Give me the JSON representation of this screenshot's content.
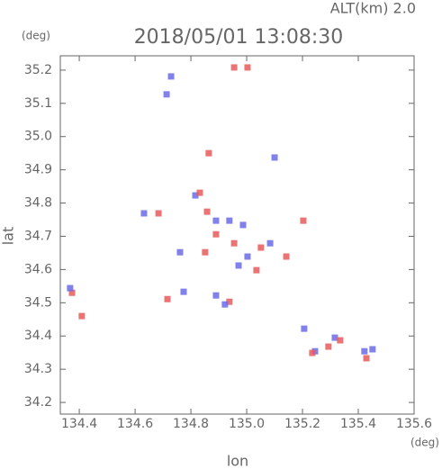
{
  "chart_data": {
    "type": "scatter",
    "title": "2018/05/01 13:08:30",
    "subtitle": "ALT(km)  2.0",
    "y_unit": "(deg)",
    "x_unit": "(deg)",
    "x_label": "lon",
    "y_label": "lat",
    "xlim": [
      134.332,
      135.6
    ],
    "ylim": [
      34.165,
      35.243
    ],
    "xticks": [
      134.4,
      134.6,
      134.8,
      {
        "value": 135,
        "label": "135.0"
      },
      135.2,
      135.4,
      135.6
    ],
    "yticks": [
      34.2,
      34.3,
      34.4,
      34.5,
      34.6,
      34.7,
      34.8,
      34.9,
      {
        "value": 35,
        "label": "35.0"
      },
      35.1,
      35.2
    ],
    "x": [
      134.374,
      134.367,
      134.409,
      134.716,
      134.774,
      134.684,
      134.632,
      134.816,
      134.832,
      134.858,
      134.89,
      134.938,
      134.987,
      134.89,
      134.955,
      135.003,
      135.051,
      135.084,
      134.971,
      135.035,
      134.89,
      134.938,
      134.922,
      134.851,
      134.761,
      134.729,
      134.713,
      134.955,
      135.003,
      134.864,
      135.1,
      135.203,
      135.142,
      135.206,
      135.245,
      135.235,
      135.316,
      135.293,
      135.335,
      135.422,
      135.429,
      135.451
    ],
    "values": [
      34.53,
      34.544,
      34.46,
      34.511,
      34.533,
      34.769,
      34.769,
      34.823,
      34.831,
      34.774,
      34.747,
      34.747,
      34.734,
      34.706,
      34.679,
      34.639,
      34.666,
      34.679,
      34.612,
      34.598,
      34.522,
      34.503,
      34.495,
      34.652,
      34.652,
      35.181,
      35.127,
      35.208,
      35.208,
      34.95,
      34.937,
      34.747,
      34.639,
      34.422,
      34.354,
      34.349,
      34.395,
      34.368,
      34.387,
      34.354,
      34.333,
      34.36
    ],
    "colors": [
      "#e85a5a",
      "#6b6be8",
      "#e85a5a",
      "#e85a5a",
      "#6b6be8",
      "#e85a5a",
      "#6b6be8",
      "#6b6be8",
      "#e85a5a",
      "#e85a5a",
      "#6b6be8",
      "#6b6be8",
      "#6b6be8",
      "#e85a5a",
      "#e85a5a",
      "#6b6be8",
      "#e85a5a",
      "#6b6be8",
      "#6b6be8",
      "#e85a5a",
      "#6b6be8",
      "#e85a5a",
      "#6b6be8",
      "#e85a5a",
      "#6b6be8",
      "#6b6be8",
      "#6b6be8",
      "#e85a5a",
      "#e85a5a",
      "#e85a5a",
      "#6b6be8",
      "#e85a5a",
      "#e85a5a",
      "#6b6be8",
      "#6b6be8",
      "#e85a5a",
      "#6b6be8",
      "#e85a5a",
      "#e85a5a",
      "#6b6be8",
      "#e85a5a",
      "#6b6be8"
    ]
  }
}
